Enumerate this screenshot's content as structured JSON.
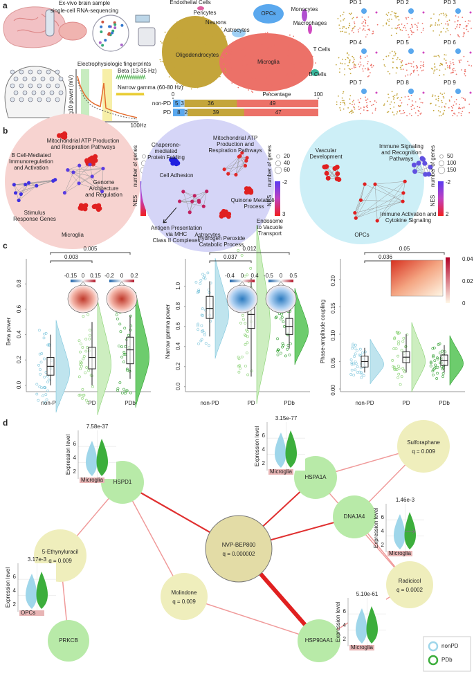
{
  "panel_a": {
    "label": "a",
    "sample_title": "Ex-vivo brain sample",
    "sample_subtitle": "single-cell RNA-sequencing",
    "ephys_title": "Electrophysiologic fingerprints",
    "ephys_ylabel": "log10 power (mV)",
    "ephys_xtick": "100Hz",
    "beta_label": "Beta (13-35 Hz)",
    "gamma_label": "Narrow gamma (60-80 Hz)",
    "cell_types": [
      "Endothelial Cells",
      "Pericytes",
      "OPCs",
      "Neurons",
      "Astrocytes",
      "Monocytes",
      "Macrophages",
      "T Cells",
      "B Cells",
      "Oligodendrocytes",
      "Microglia"
    ],
    "percentage": {
      "title": "Percentage",
      "xlim": [
        0,
        100
      ],
      "xticks": [
        0,
        100
      ],
      "groups": [
        "non-PD",
        "PD"
      ],
      "segments": [
        [
          5,
          3,
          36,
          49
        ],
        [
          8,
          2,
          39,
          47
        ]
      ],
      "colors": [
        "#5aa8ee",
        "#9fd0f5",
        "#c4a53a",
        "#ec7168"
      ]
    },
    "samples": [
      "PD 1",
      "PD 2",
      "PD 3",
      "PD 4",
      "PD 5",
      "PD 6",
      "PD 7",
      "PD 8",
      "PD 9"
    ]
  },
  "panel_b": {
    "label": "b",
    "clusters": [
      {
        "title": "Microglia",
        "color": "#f7d3d0",
        "terms": [
          [
            "Mitochondrial ATP Production",
            "and Respiration Pathways"
          ],
          [
            "B Cell-Mediated",
            "Immunoregulation",
            "and Activation"
          ],
          [
            "Genome",
            "Architecture",
            "and Regulation"
          ],
          [
            "Stimulus",
            "Response Genes"
          ]
        ],
        "size_title": "number of genes",
        "size_ticks": [
          25,
          50,
          100
        ],
        "nes_title": "NES",
        "nes_ticks": [
          -2,
          2
        ]
      },
      {
        "title": "Astrocytes",
        "color": "#d5d5f7",
        "terms": [
          [
            "Chaperone-",
            "mediated",
            "Protein Folding"
          ],
          [
            "Mitochondrial ATP",
            "Production and",
            "Respiration Pathways"
          ],
          [
            "Cell Adhesion"
          ],
          [
            "Quinone Metabolic",
            "Process"
          ],
          [
            "Endosome",
            "to Vacuole",
            "Transport"
          ],
          [
            "Antigen Presentation",
            "via MHC",
            "Class II Complexes"
          ],
          [
            "Hydrogen Peroxide",
            "Catabolic Process"
          ]
        ],
        "size_title": "number of genes",
        "size_ticks": [
          20,
          40,
          60
        ],
        "nes_title": "NES",
        "nes_ticks": [
          -2,
          3
        ]
      },
      {
        "title": "OPCs",
        "color": "#cdeff7",
        "terms": [
          [
            "Vascular",
            "Development"
          ],
          [
            "Immune Signaling",
            "and Recognition",
            "Pathways"
          ],
          [
            "Immune Activation and",
            "Cytokine Signaling"
          ]
        ],
        "size_title": "number of genes",
        "size_ticks": [
          50,
          100,
          150
        ],
        "nes_title": "NES",
        "nes_ticks": [
          -2,
          2
        ]
      }
    ]
  },
  "panel_c": {
    "label": "c",
    "plots": [
      {
        "ylabel": "Beta power",
        "categories": [
          "non-PD",
          "PD",
          "PDb"
        ],
        "ylim": [
          -0.05,
          0.9
        ],
        "yticks": [
          {
            "value": 0,
            "label": "0.0"
          },
          0.2,
          0.4,
          0.6,
          0.8
        ],
        "boxes": [
          {
            "low": 0.0,
            "q1": 0.08,
            "median": 0.15,
            "q3": 0.22,
            "high": 0.4
          },
          {
            "low": 0.0,
            "q1": 0.13,
            "median": 0.22,
            "q3": 0.3,
            "high": 0.5
          },
          {
            "low": 0.05,
            "q1": 0.17,
            "median": 0.28,
            "q3": 0.38,
            "high": 0.55
          }
        ],
        "comparisons": [
          0.003,
          0.005
        ],
        "colorbars": [
          [
            -0.15,
            0,
            0.15
          ],
          [
            -0.2,
            0,
            0.2
          ]
        ]
      },
      {
        "ylabel": "Narrow gamma power",
        "categories": [
          "non-PD",
          "PD",
          "PDb"
        ],
        "ylim": [
          -0.05,
          1.15
        ],
        "yticks": [
          {
            "value": 0,
            "label": "0.0"
          },
          0.2,
          0.4,
          0.6,
          0.8,
          {
            "value": 1,
            "label": "1.0"
          }
        ],
        "boxes": [
          {
            "low": 0.5,
            "q1": 0.68,
            "median": 0.78,
            "q3": 0.9,
            "high": 1.05
          },
          {
            "low": 0.1,
            "q1": 0.58,
            "median": 0.72,
            "q3": 0.85,
            "high": 1.08
          },
          {
            "low": 0.38,
            "q1": 0.52,
            "median": 0.6,
            "q3": 0.68,
            "high": 0.8
          }
        ],
        "comparisons": [
          0.037,
          0.012
        ],
        "colorbars": [
          [
            -0.4,
            0,
            0.4
          ],
          [
            -0.5,
            0,
            0.5
          ]
        ]
      },
      {
        "ylabel": "Phase-amplitude coupling",
        "categories": [
          "non-PD",
          "PD",
          "PDb"
        ],
        "ylim": [
          -0.005,
          0.215
        ],
        "yticks": [
          {
            "value": 0,
            "label": "0.00"
          },
          0.05,
          {
            "value": 0.1,
            "label": "0.10"
          },
          0.15,
          {
            "value": 0.2,
            "label": "0.20"
          }
        ],
        "boxes": [
          {
            "low": 0.03,
            "q1": 0.04,
            "median": 0.05,
            "q3": 0.06,
            "high": 0.075
          },
          {
            "low": 0.03,
            "q1": 0.048,
            "median": 0.058,
            "q3": 0.068,
            "high": 0.1
          },
          {
            "low": 0.03,
            "q1": 0.043,
            "median": 0.052,
            "q3": 0.062,
            "high": 0.08
          }
        ],
        "comparisons": [
          0.036,
          0.05
        ],
        "heatmap_ticks": [
          0.04,
          0.02,
          0
        ]
      }
    ]
  },
  "panel_d": {
    "label": "d",
    "nodes": [
      {
        "label": "NVP-BEP800",
        "q": "q = 0.000002",
        "color": "#e3dca6"
      },
      {
        "label": "HSPD1",
        "color": "#b8eaa8"
      },
      {
        "label": "HSPA1A",
        "color": "#b8eaa8"
      },
      {
        "label": "DNAJA4",
        "color": "#b8eaa8"
      },
      {
        "label": "HSP90AA1",
        "color": "#b8eaa8"
      },
      {
        "label": "PRKCB",
        "color": "#b8eaa8"
      },
      {
        "label": "Sulforaphane",
        "q": "q = 0.009",
        "color": "#efeebc"
      },
      {
        "label": "Radicicol",
        "q": "q = 0.0002",
        "color": "#efeebc"
      },
      {
        "label": "5-Ethynyluracil",
        "q": "q = 0.009",
        "color": "#efeebc"
      },
      {
        "label": "Molindone",
        "q": "q = 0.009",
        "color": "#efeebc"
      }
    ],
    "insets": [
      {
        "p": "7.58e-37",
        "ylabel": "Expression level",
        "yticks": [
          2,
          4,
          6
        ],
        "tag": "Microglia"
      },
      {
        "p": "3.15e-77",
        "ylabel": "Expression level",
        "yticks": [
          2,
          4,
          6
        ],
        "tag": "Microglia"
      },
      {
        "p": "1.46e-3",
        "ylabel": "Expression level",
        "yticks": [
          2,
          4,
          6
        ],
        "tag": "Microglia"
      },
      {
        "p": "3.17e-3",
        "ylabel": "Expression level",
        "yticks": [
          2,
          4,
          6
        ],
        "tag": "OPCs"
      },
      {
        "p": "5.10e-61",
        "ylabel": "Expression level",
        "yticks": [
          2,
          4,
          6
        ],
        "tag": "Microglia"
      }
    ],
    "legend": [
      {
        "name": "nonPD",
        "color": "#9fd6ea"
      },
      {
        "name": "PDb",
        "color": "#3cae3c"
      }
    ]
  }
}
